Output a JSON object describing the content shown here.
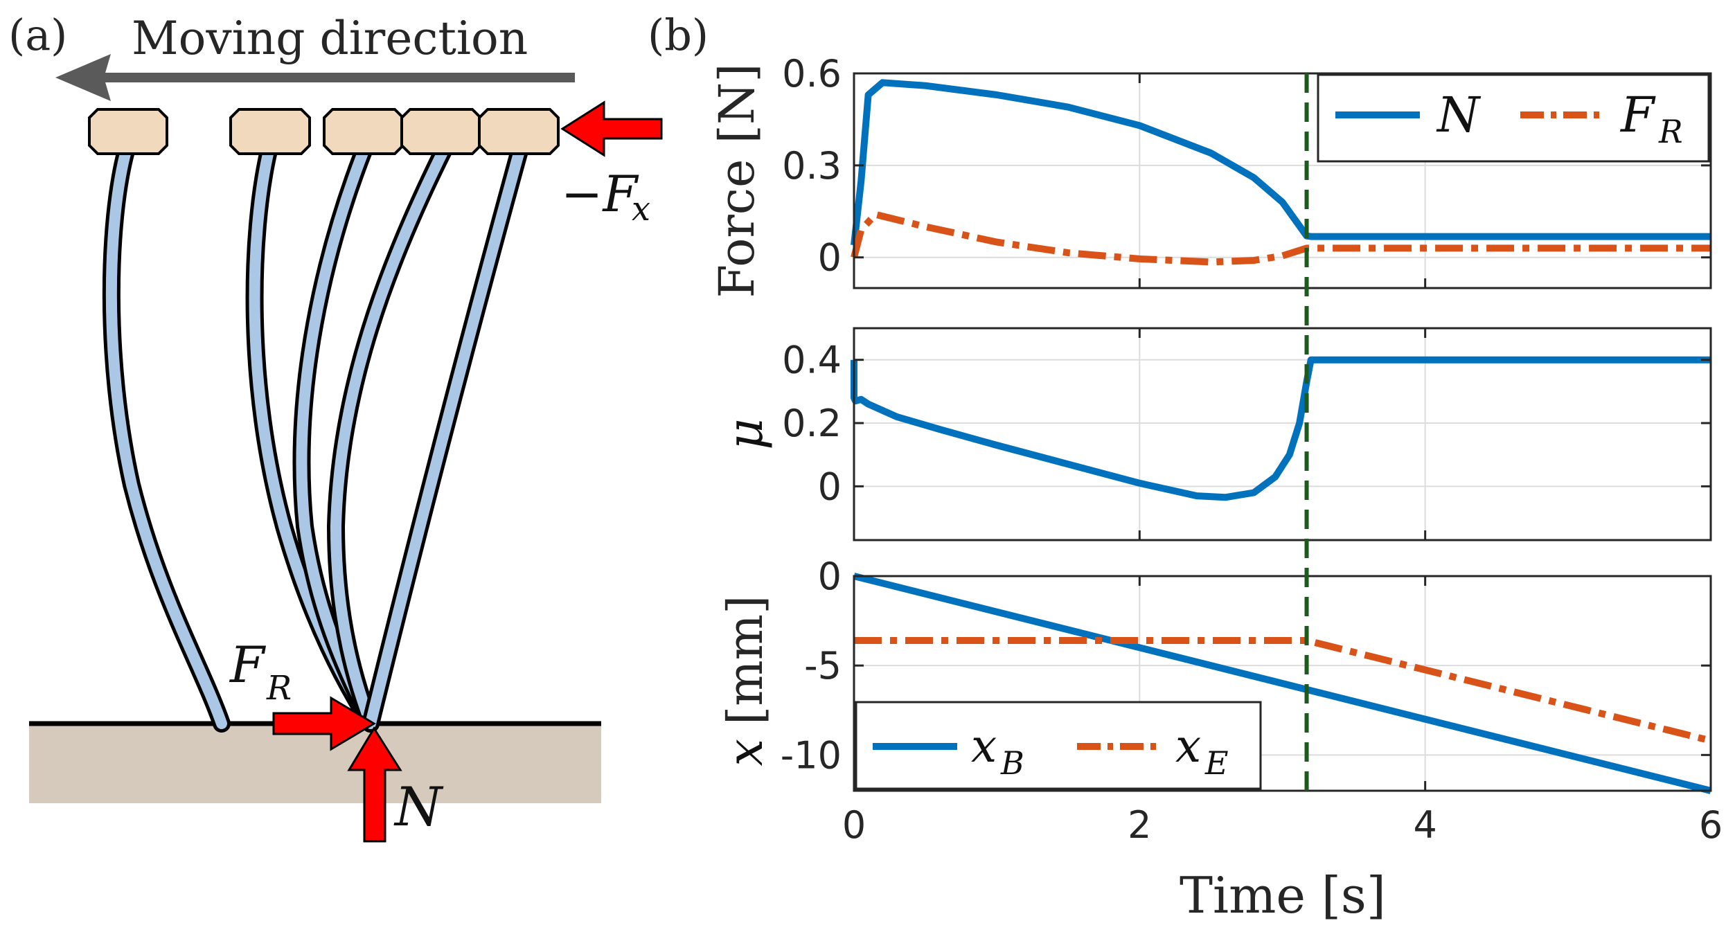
{
  "panel_a": {
    "label": "(a)",
    "moving_direction": "Moving direction",
    "force_fx_main": "−F",
    "force_fx_sub": "x",
    "force_fr_main": "F",
    "force_fr_sub": "R",
    "force_n": "N",
    "colors": {
      "base": "#f0d9bd",
      "fiber": "#aac8e6",
      "ground": "#d6cabd",
      "arrow": "#ff0000",
      "direction_arrow": "#5a5a5a"
    }
  },
  "panel_b": {
    "label": "(b)",
    "xlabel": "Time [s]"
  },
  "chart_data": [
    {
      "type": "line",
      "ylabel": "Force [N]",
      "xlim": [
        0,
        6
      ],
      "ylim": [
        -0.1,
        0.6
      ],
      "xticks": [
        0,
        2,
        4,
        6
      ],
      "yticks": [
        0,
        0.3,
        0.6
      ],
      "ytick_labels": [
        "0",
        "0.3",
        "0.6"
      ],
      "grid": true,
      "legend_position": "top-right",
      "vline_x": 3.17,
      "series": [
        {
          "name": "N",
          "legend_main": "N",
          "legend_sub": "",
          "color": "#0072bd",
          "style": "solid",
          "x": [
            0,
            0.05,
            0.1,
            0.2,
            0.5,
            1.0,
            1.5,
            2.0,
            2.5,
            2.8,
            3.0,
            3.17,
            3.2,
            6.0
          ],
          "y": [
            0.04,
            0.25,
            0.53,
            0.57,
            0.56,
            0.53,
            0.49,
            0.43,
            0.34,
            0.26,
            0.18,
            0.07,
            0.068,
            0.068
          ]
        },
        {
          "name": "F_R",
          "legend_main": "F",
          "legend_sub": "R",
          "color": "#d95319",
          "style": "dashdot",
          "x": [
            0,
            0.05,
            0.15,
            0.5,
            1.0,
            1.5,
            2.0,
            2.5,
            2.8,
            3.0,
            3.17,
            3.2,
            6.0
          ],
          "y": [
            0.0,
            0.09,
            0.14,
            0.1,
            0.05,
            0.015,
            -0.005,
            -0.015,
            -0.01,
            0.005,
            0.03,
            0.03,
            0.03
          ]
        }
      ]
    },
    {
      "type": "line",
      "ylabel": "μ",
      "xlim": [
        0,
        6
      ],
      "ylim": [
        -0.17,
        0.5
      ],
      "xticks": [
        0,
        2,
        4,
        6
      ],
      "yticks": [
        0,
        0.2,
        0.4
      ],
      "ytick_labels": [
        "0",
        "0.2",
        "0.4"
      ],
      "grid": true,
      "vline_x": 3.17,
      "series": [
        {
          "name": "mu",
          "color": "#0072bd",
          "style": "solid",
          "x": [
            0,
            0.0,
            0.01,
            0.05,
            0.1,
            0.3,
            0.6,
            1.0,
            1.5,
            2.0,
            2.4,
            2.6,
            2.8,
            2.95,
            3.05,
            3.12,
            3.17,
            3.2,
            6.0
          ],
          "y": [
            0.4,
            0.28,
            0.27,
            0.275,
            0.26,
            0.22,
            0.18,
            0.13,
            0.07,
            0.01,
            -0.03,
            -0.035,
            -0.02,
            0.03,
            0.1,
            0.2,
            0.33,
            0.4,
            0.4
          ]
        }
      ]
    },
    {
      "type": "line",
      "ylabel": "x [mm]",
      "ylabel_var": "x",
      "ylabel_unit": "[mm]",
      "xlim": [
        0,
        6
      ],
      "ylim": [
        -12,
        0
      ],
      "xticks": [
        0,
        2,
        4,
        6
      ],
      "yticks": [
        0,
        -5,
        -10
      ],
      "ytick_labels": [
        "0",
        "-5",
        "-10"
      ],
      "xtick_labels": [
        "0",
        "2",
        "4",
        "6"
      ],
      "grid": true,
      "legend_position": "bottom-left",
      "vline_x": 3.17,
      "series": [
        {
          "name": "x_B",
          "legend_main": "x",
          "legend_sub": "B",
          "color": "#0072bd",
          "style": "solid",
          "x": [
            0,
            6
          ],
          "y": [
            0,
            -12
          ]
        },
        {
          "name": "x_E",
          "legend_main": "x",
          "legend_sub": "E",
          "color": "#d95319",
          "style": "dashdot",
          "x": [
            0,
            3.17,
            6
          ],
          "y": [
            -3.6,
            -3.6,
            -9.2
          ]
        }
      ]
    }
  ]
}
